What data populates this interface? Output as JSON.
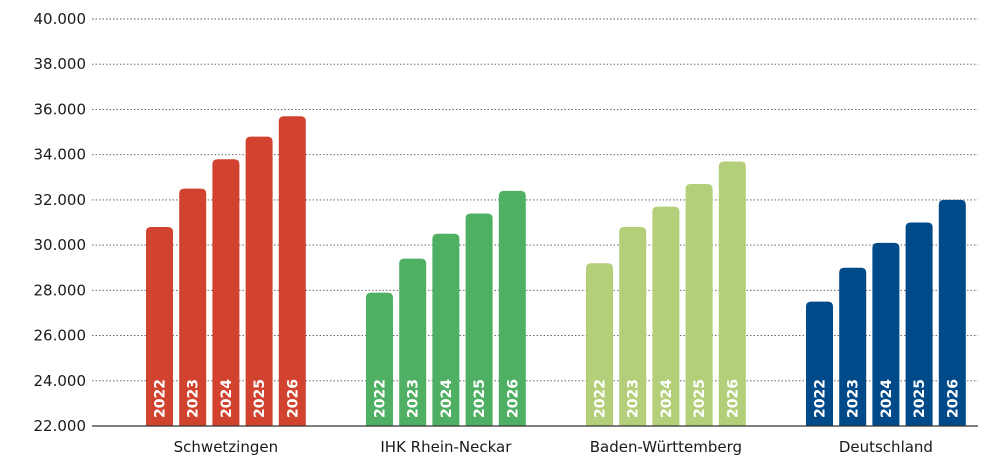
{
  "chart_data": {
    "type": "bar",
    "categories": [
      "Schwetzingen",
      "IHK Rhein-Neckar",
      "Baden-Württemberg",
      "Deutschland"
    ],
    "series_labels": [
      "2022",
      "2023",
      "2024",
      "2025",
      "2026"
    ],
    "values": [
      [
        30800,
        32500,
        33800,
        34800,
        35700
      ],
      [
        27900,
        29400,
        30500,
        31400,
        32400
      ],
      [
        29200,
        30800,
        31700,
        32700,
        33700
      ],
      [
        27500,
        29000,
        30100,
        31000,
        32000
      ]
    ],
    "category_colors": [
      "#d1432f",
      "#4fb064",
      "#b3cf7a",
      "#004a8a"
    ],
    "yaxis": {
      "min": 22000,
      "max": 40000,
      "ticks": [
        {
          "value": 22000,
          "label": "22.000"
        },
        {
          "value": 24000,
          "label": "24.000"
        },
        {
          "value": 26000,
          "label": "26.000"
        },
        {
          "value": 28000,
          "label": "28.000"
        },
        {
          "value": 30000,
          "label": "30.000"
        },
        {
          "value": 32000,
          "label": "32.000"
        },
        {
          "value": 34000,
          "label": "34.000"
        },
        {
          "value": 36000,
          "label": "36.000"
        },
        {
          "value": 38000,
          "label": "38.000"
        },
        {
          "value": 40000,
          "label": "40.000"
        }
      ]
    },
    "title": "",
    "xlabel": "",
    "ylabel": "",
    "grid": true,
    "legend": "none"
  }
}
